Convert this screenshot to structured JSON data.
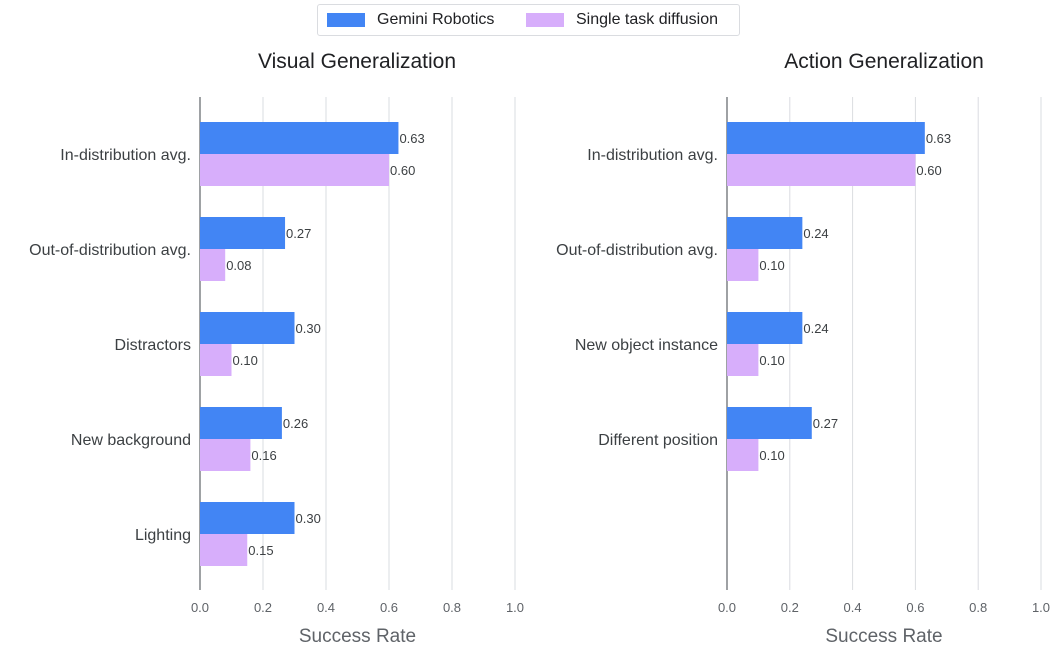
{
  "legend": {
    "items": [
      {
        "name": "Gemini Robotics",
        "color": "#4285f4"
      },
      {
        "name": "Single task diffusion",
        "color": "#d7aefb"
      }
    ]
  },
  "chart_data": [
    {
      "type": "bar",
      "orientation": "horizontal",
      "title": "Visual Generalization",
      "xlabel": "Success Rate",
      "ylabel": "",
      "xlim": [
        0,
        1.0
      ],
      "xticks": [
        0.0,
        0.2,
        0.4,
        0.6,
        0.8,
        1.0
      ],
      "tick_labels": [
        "0.0",
        "0.2",
        "0.4",
        "0.6",
        "0.8",
        "1.0"
      ],
      "grid": true,
      "categories": [
        "In-distribution avg.",
        "Out-of-distribution avg.",
        "Distractors",
        "New background",
        "Lighting"
      ],
      "series": [
        {
          "name": "Gemini Robotics",
          "values": [
            0.63,
            0.27,
            0.3,
            0.26,
            0.3
          ],
          "labels": [
            "0.63",
            "0.27",
            "0.30",
            "0.26",
            "0.30"
          ]
        },
        {
          "name": "Single task diffusion",
          "values": [
            0.6,
            0.08,
            0.1,
            0.16,
            0.15
          ],
          "labels": [
            "0.60",
            "0.08",
            "0.10",
            "0.16",
            "0.15"
          ]
        }
      ]
    },
    {
      "type": "bar",
      "orientation": "horizontal",
      "title": "Action Generalization",
      "xlabel": "Success Rate",
      "ylabel": "",
      "xlim": [
        0,
        1.0
      ],
      "xticks": [
        0.0,
        0.2,
        0.4,
        0.6,
        0.8,
        1.0
      ],
      "tick_labels": [
        "0.0",
        "0.2",
        "0.4",
        "0.6",
        "0.8",
        "1.0"
      ],
      "grid": true,
      "categories": [
        "In-distribution avg.",
        "Out-of-distribution avg.",
        "New object instance",
        "Different position"
      ],
      "series": [
        {
          "name": "Gemini Robotics",
          "values": [
            0.63,
            0.24,
            0.24,
            0.27
          ],
          "labels": [
            "0.63",
            "0.24",
            "0.24",
            "0.27"
          ]
        },
        {
          "name": "Single task diffusion",
          "values": [
            0.6,
            0.1,
            0.1,
            0.1
          ],
          "labels": [
            "0.60",
            "0.10",
            "0.10",
            "0.10"
          ]
        }
      ]
    }
  ]
}
